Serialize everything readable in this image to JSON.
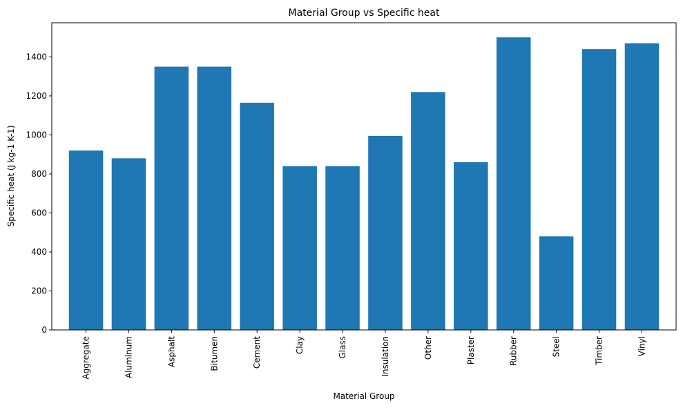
{
  "chart_data": {
    "type": "bar",
    "title": "Material Group vs Specific heat",
    "xlabel": "Material Group",
    "ylabel": "Specific heat (J kg-1 K-1)",
    "categories": [
      "Aggregate",
      "Aluminum",
      "Asphalt",
      "Bitumen",
      "Cement",
      "Clay",
      "Glass",
      "Insulation",
      "Other",
      "Plaster",
      "Rubber",
      "Steel",
      "Timber",
      "Vinyl"
    ],
    "values": [
      920,
      880,
      1350,
      1350,
      1165,
      840,
      840,
      995,
      1220,
      860,
      1500,
      480,
      1440,
      1470
    ],
    "ylim": [
      0,
      1575
    ],
    "yticks": [
      0,
      200,
      400,
      600,
      800,
      1000,
      1200,
      1400
    ],
    "bar_color": "#1f77b4",
    "grid": false,
    "legend": "none"
  }
}
